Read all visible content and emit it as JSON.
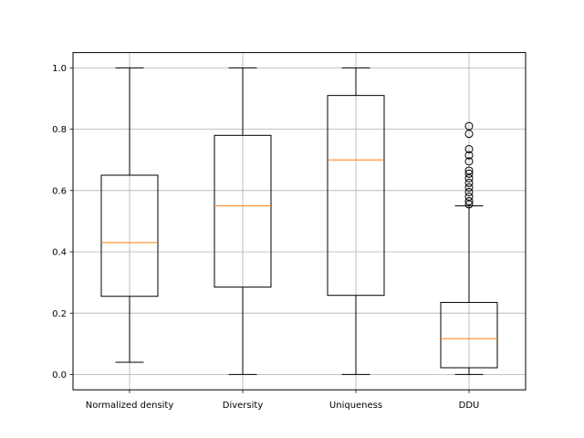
{
  "chart_data": {
    "type": "boxplot",
    "categories": [
      "Normalized density",
      "Diversity",
      "Uniqueness",
      "DDU"
    ],
    "boxes": [
      {
        "whisker_low": 0.04,
        "q1": 0.255,
        "median": 0.43,
        "q3": 0.65,
        "whisker_high": 1.0,
        "outliers": []
      },
      {
        "whisker_low": 0.0,
        "q1": 0.285,
        "median": 0.55,
        "q3": 0.78,
        "whisker_high": 1.0,
        "outliers": []
      },
      {
        "whisker_low": 0.0,
        "q1": 0.258,
        "median": 0.7,
        "q3": 0.91,
        "whisker_high": 1.0,
        "outliers": []
      },
      {
        "whisker_low": 0.0,
        "q1": 0.022,
        "median": 0.117,
        "q3": 0.235,
        "whisker_high": 0.55,
        "outliers": [
          0.555,
          0.565,
          0.58,
          0.595,
          0.61,
          0.625,
          0.64,
          0.655,
          0.665,
          0.695,
          0.715,
          0.735,
          0.785,
          0.81
        ]
      }
    ],
    "yticks": [
      "0.0",
      "0.2",
      "0.4",
      "0.6",
      "0.8",
      "1.0"
    ],
    "ylim": [
      -0.05,
      1.05
    ],
    "grid": true,
    "colors": {
      "box": "#000000",
      "median": "#ff7f0e",
      "grid": "#b0b0b0"
    }
  }
}
